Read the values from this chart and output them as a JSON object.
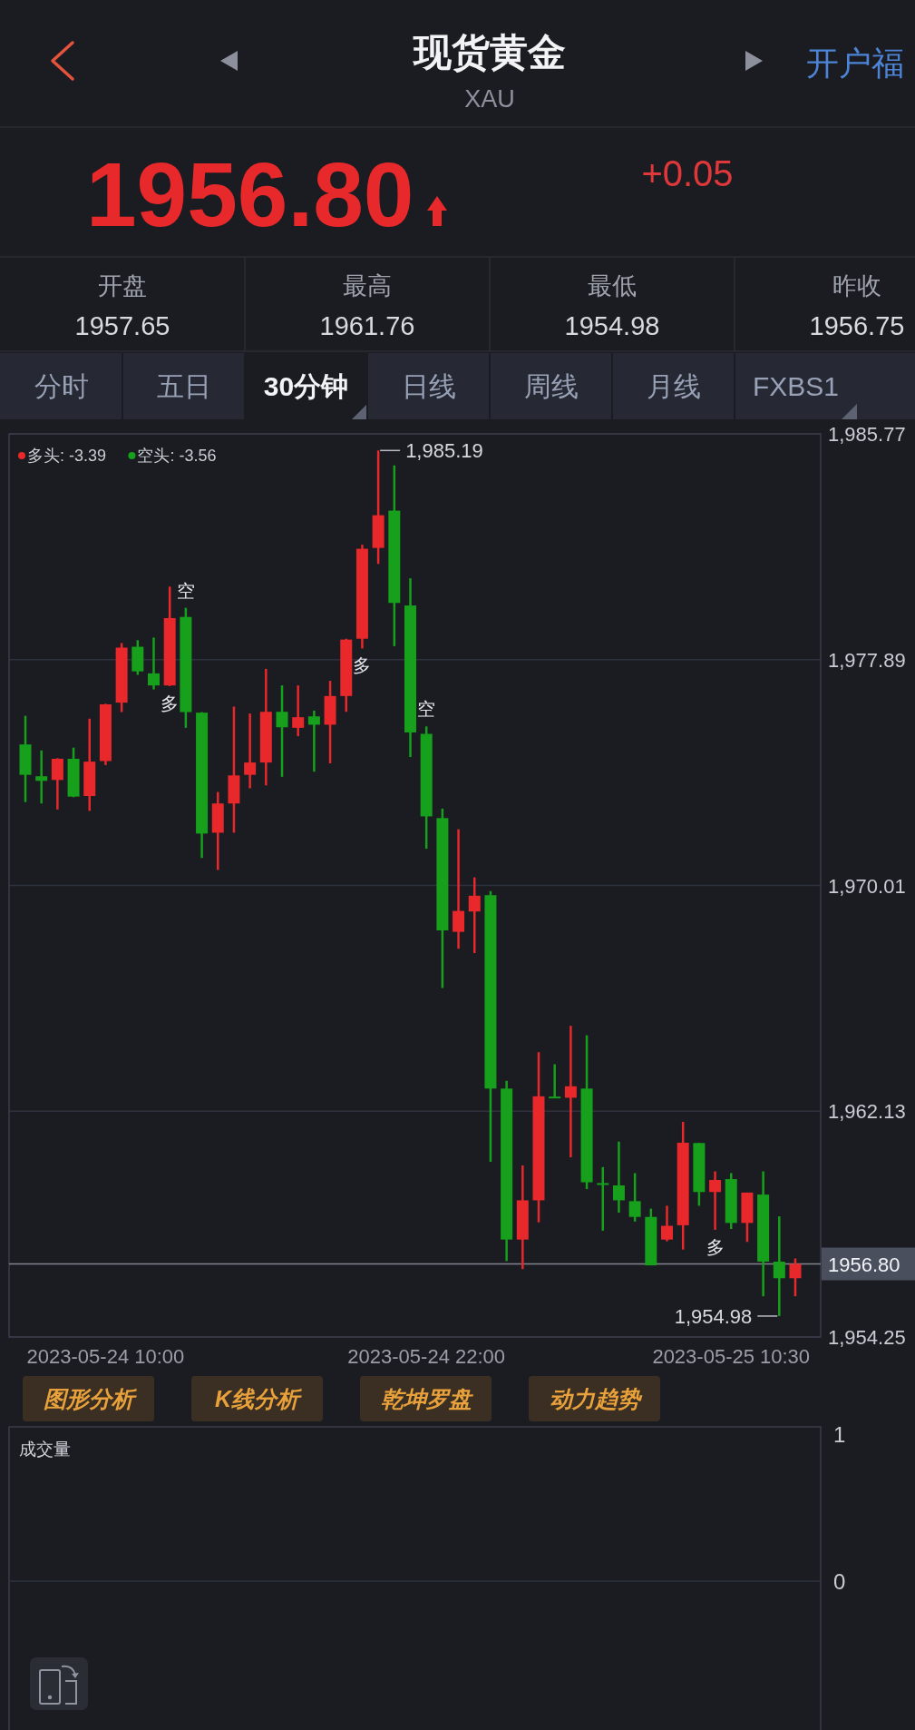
{
  "chart_data": [
    {
      "type": "other",
      "title": "现货黄金",
      "subtitle": "XAU",
      "annotations": [
        "开户福"
      ]
    },
    {
      "type": "other",
      "annotations": [
        "1956.80",
        "+0.05"
      ]
    },
    {
      "type": "other",
      "annotations": [
        "开盘",
        "1957.65",
        "最高",
        "1961.76",
        "最低",
        "1954.98",
        "昨收",
        "1956.75"
      ]
    },
    {
      "type": "other",
      "annotations": [
        "分时",
        "五日",
        "30分钟",
        "日线",
        "周线",
        "月线",
        "FXBS1"
      ]
    },
    {
      "type": "candlestick",
      "categories": [
        null,
        null,
        null,
        null,
        null,
        "2023-05-24 10:00",
        null,
        null,
        null,
        null,
        null,
        null,
        null,
        null,
        null,
        null,
        null,
        null,
        null,
        null,
        null,
        null,
        null,
        null,
        null,
        "2023-05-24 22:00",
        null,
        null,
        null,
        null,
        null,
        null,
        null,
        null,
        null,
        null,
        null,
        null,
        null,
        null,
        null,
        null,
        null,
        null,
        "2023-05-25 10:30",
        null,
        null,
        null,
        null
      ],
      "ohlc": [
        [
          1974.93,
          1975.93,
          1972.92,
          1973.87
        ],
        [
          1973.82,
          1974.72,
          1972.87,
          1973.66
        ],
        [
          1973.69,
          1974.45,
          1972.66,
          1974.43
        ],
        [
          1974.43,
          1974.82,
          1973.09,
          1973.11
        ],
        [
          1973.13,
          1975.83,
          1972.61,
          1974.33
        ],
        [
          1974.35,
          1976.35,
          1974.21,
          1976.33
        ],
        [
          1976.39,
          1978.47,
          1976.06,
          1978.31
        ],
        [
          1978.34,
          1978.57,
          1977.36,
          1977.48
        ],
        [
          1977.41,
          1978.66,
          1976.85,
          1976.99
        ],
        [
          1976.99,
          1980.44,
          1976.97,
          1979.34
        ],
        [
          1979.38,
          1979.7,
          1975.51,
          1976.06
        ],
        [
          1976.04,
          1976.06,
          1970.97,
          1971.82
        ],
        [
          1971.85,
          1973.27,
          1970.55,
          1972.87
        ],
        [
          1972.87,
          1976.25,
          1971.85,
          1973.85
        ],
        [
          1973.87,
          1976.01,
          1973.4,
          1974.3
        ],
        [
          1974.3,
          1977.57,
          1973.5,
          1976.07
        ],
        [
          1976.07,
          1976.99,
          1973.8,
          1975.53
        ],
        [
          1975.51,
          1976.99,
          1975.22,
          1975.88
        ],
        [
          1975.91,
          1976.11,
          1973.98,
          1975.62
        ],
        [
          1975.62,
          1977.15,
          1974.27,
          1976.62
        ],
        [
          1976.62,
          1978.62,
          1976.07,
          1978.59
        ],
        [
          1978.62,
          1981.9,
          1978.28,
          1981.76
        ],
        [
          1981.79,
          1985.19,
          1981.23,
          1982.93
        ],
        [
          1983.09,
          1984.67,
          1978.36,
          1979.87
        ],
        [
          1979.78,
          1980.73,
          1974.49,
          1975.35
        ],
        [
          1975.3,
          1975.56,
          1971.29,
          1972.42
        ],
        [
          1972.36,
          1972.69,
          1966.43,
          1968.44
        ],
        [
          1968.39,
          1971.97,
          1967.8,
          1969.12
        ],
        [
          1969.1,
          1970.29,
          1967.65,
          1969.65
        ],
        [
          1969.67,
          1969.81,
          1960.36,
          1962.92
        ],
        [
          1962.92,
          1963.19,
          1956.9,
          1957.65
        ],
        [
          1957.65,
          1960.24,
          1956.62,
          1959.02
        ],
        [
          1959.02,
          1964.19,
          1958.25,
          1962.65
        ],
        [
          1962.64,
          1963.77,
          1962.6,
          1962.6
        ],
        [
          1962.6,
          1965.11,
          1960.52,
          1963.0
        ],
        [
          1962.92,
          1964.78,
          1959.41,
          1959.65
        ],
        [
          1959.62,
          1960.18,
          1957.96,
          1959.57
        ],
        [
          1959.54,
          1961.07,
          1958.59,
          1959.02
        ],
        [
          1958.99,
          1959.97,
          1958.28,
          1958.44
        ],
        [
          1958.44,
          1958.73,
          1956.75,
          1956.75
        ],
        [
          1957.65,
          1958.83,
          1957.59,
          1958.13
        ],
        [
          1958.15,
          1961.76,
          1957.3,
          1961.03
        ],
        [
          1961.02,
          1961.02,
          1958.83,
          1959.31
        ],
        [
          1959.31,
          1960.03,
          1957.99,
          1959.73
        ],
        [
          1959.76,
          1959.97,
          1958.02,
          1958.23
        ],
        [
          1958.23,
          1959.29,
          1957.57,
          1959.29
        ],
        [
          1959.22,
          1960.03,
          1955.67,
          1956.88
        ],
        [
          1956.88,
          1958.46,
          1954.98,
          1956.3
        ],
        [
          1956.3,
          1956.99,
          1955.67,
          1956.8
        ]
      ],
      "colors": [
        "#16a01c",
        "#16a01c",
        "#e8282b",
        "#16a01c",
        "#e8282b",
        "#e8282b",
        "#e8282b",
        "#16a01c",
        "#16a01c",
        "#e8282b",
        "#16a01c",
        "#16a01c",
        "#e8282b",
        "#e8282b",
        "#e8282b",
        "#e8282b",
        "#16a01c",
        "#e8282b",
        "#16a01c",
        "#e8282b",
        "#e8282b",
        "#e8282b",
        "#e8282b",
        "#16a01c",
        "#16a01c",
        "#16a01c",
        "#16a01c",
        "#e8282b",
        "#e8282b",
        "#16a01c",
        "#16a01c",
        "#e8282b",
        "#e8282b",
        "#16a01c",
        "#e8282b",
        "#16a01c",
        "#16a01c",
        "#16a01c",
        "#16a01c",
        "#16a01c",
        "#e8282b",
        "#e8282b",
        "#16a01c",
        "#e8282b",
        "#16a01c",
        "#e8282b",
        "#16a01c",
        "#16a01c",
        "#e8282b"
      ],
      "ylim": [
        1954.25,
        1985.77
      ],
      "yticks": [
        {
          "value": 1985.77,
          "label": "1,985.77"
        },
        {
          "value": 1977.89,
          "label": "1,977.89"
        },
        {
          "value": 1970.01,
          "label": "1,970.01"
        },
        {
          "value": 1962.13,
          "label": "1,962.13"
        },
        {
          "value": 1954.25,
          "label": "1,954.25"
        }
      ],
      "grid": "y",
      "ref_lines": [
        {
          "axis": "y",
          "value": 1956.8,
          "label": "1956.80"
        }
      ],
      "annotations": [
        "多头: -3.39",
        "空头: -3.56",
        "1,985.19",
        "1,954.98",
        {
          "text": "空",
          "y": 1979.7
        },
        {
          "text": "多",
          "y": 1976.97
        },
        {
          "text": "多",
          "y": 1978.28
        },
        {
          "text": "空",
          "y": 1975.56
        },
        {
          "text": "多",
          "y": 1957.99
        }
      ]
    },
    {
      "type": "other",
      "annotations": [
        "图形分析",
        "K线分析",
        "乾坤罗盘",
        "动力趋势"
      ]
    },
    {
      "type": "other",
      "title": "成交量",
      "annotations": [
        "1",
        "0"
      ]
    }
  ]
}
